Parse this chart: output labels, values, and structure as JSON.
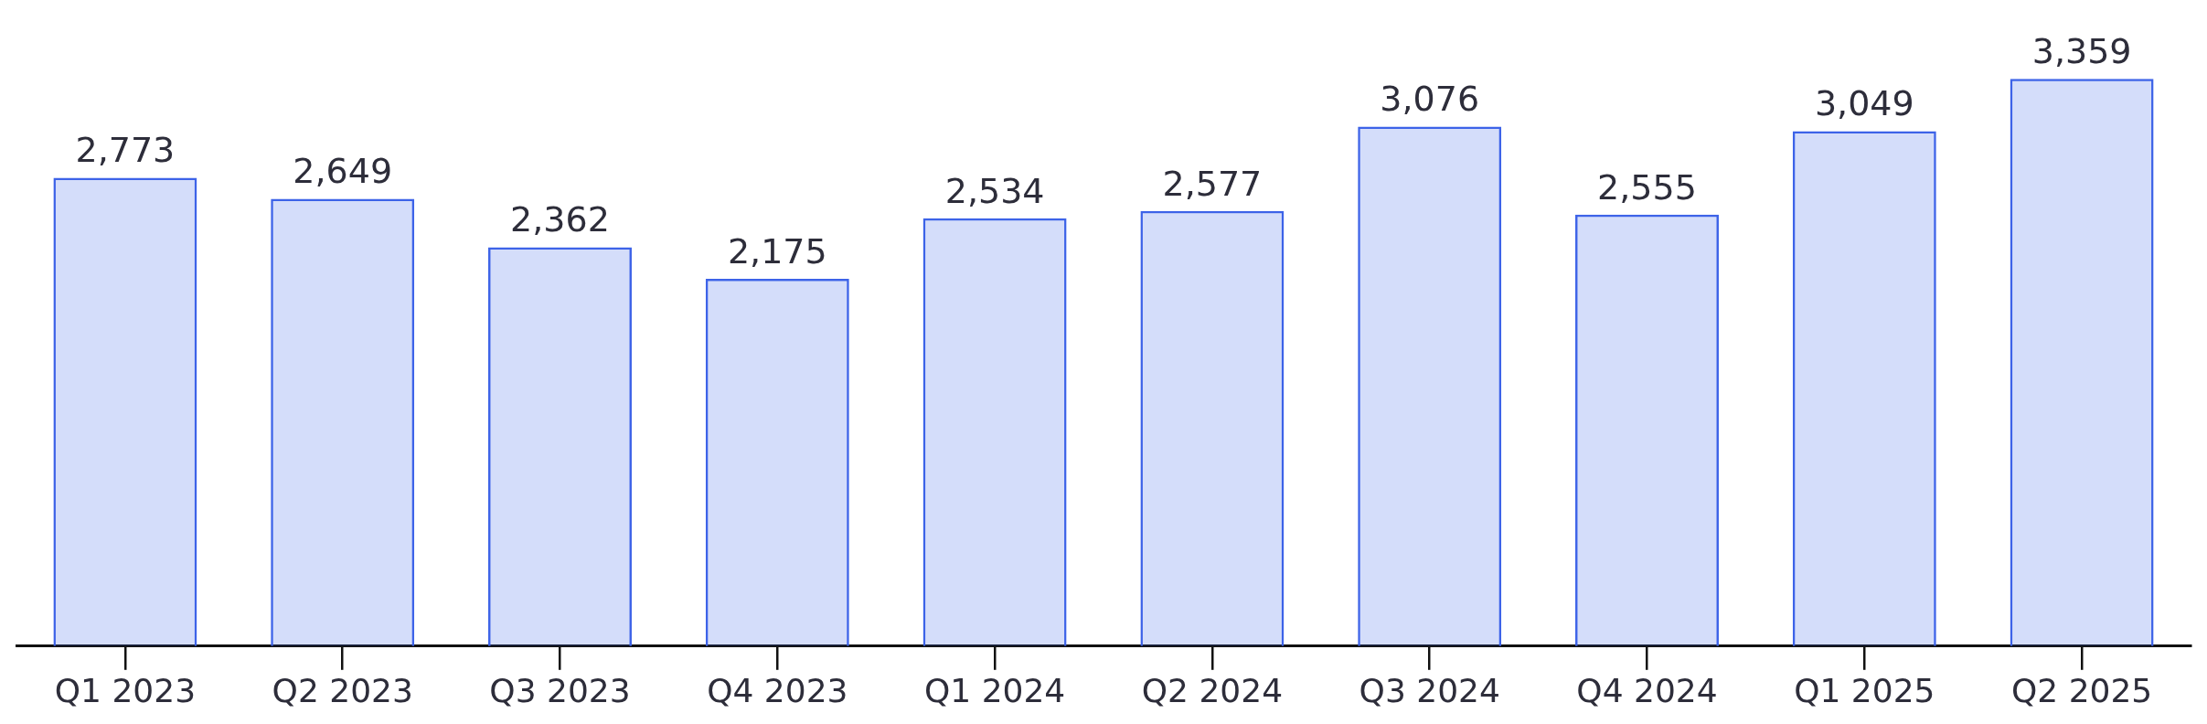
{
  "chart_data": {
    "type": "bar",
    "categories": [
      "Q1 2023",
      "Q2 2023",
      "Q3 2023",
      "Q4 2023",
      "Q1 2024",
      "Q2 2024",
      "Q3 2024",
      "Q4 2024",
      "Q1 2025",
      "Q2 2025"
    ],
    "values": [
      2773,
      2649,
      2362,
      2175,
      2534,
      2577,
      3076,
      2555,
      3049,
      3359
    ],
    "value_labels": [
      "2,773",
      "2,649",
      "2,362",
      "2,175",
      "2,534",
      "2,577",
      "3,076",
      "2,555",
      "3,049",
      "3,359"
    ],
    "color": "#3d63e8",
    "grid": false,
    "legend": false
  }
}
